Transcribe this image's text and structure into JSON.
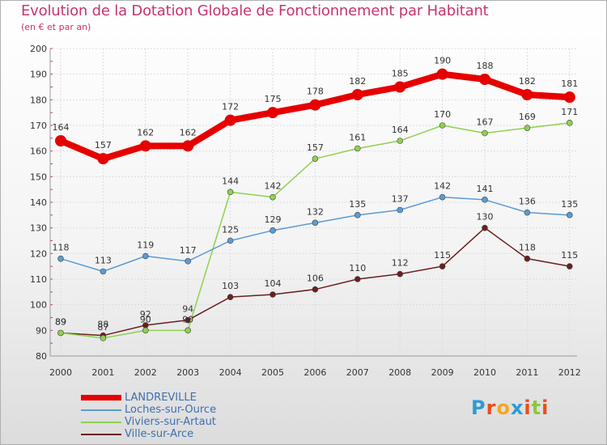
{
  "header": {
    "title": "Evolution de la Dotation Globale de Fonctionnement par Habitant",
    "subtitle": "(en € et par an)"
  },
  "logo": {
    "letters": [
      "P",
      "r",
      "o",
      "x",
      "i",
      "t",
      "i"
    ],
    "colors": [
      "#2f9ad8",
      "#e94e1b",
      "#f5a623",
      "#2f9ad8",
      "#e94e1b",
      "#8dc63f",
      "#e94e1b"
    ]
  },
  "chart_data": {
    "type": "line",
    "title": "Evolution de la Dotation Globale de Fonctionnement par Habitant",
    "subtitle": "(en € et par an)",
    "xlabel": "",
    "ylabel": "",
    "ylim": [
      80,
      200
    ],
    "yticks": [
      80,
      90,
      100,
      110,
      120,
      130,
      140,
      150,
      160,
      170,
      180,
      190,
      200
    ],
    "grid": true,
    "legend_position": "bottom-left",
    "categories": [
      "2000",
      "2001",
      "2002",
      "2003",
      "2004",
      "2005",
      "2006",
      "2007",
      "2008",
      "2009",
      "2010",
      "2011",
      "2012"
    ],
    "series": [
      {
        "name": "LANDREVILLE",
        "color": "#e60000",
        "thick": true,
        "values": [
          164,
          157,
          162,
          162,
          172,
          175,
          178,
          182,
          185,
          190,
          188,
          182,
          181
        ]
      },
      {
        "name": "Loches-sur-Ource",
        "color": "#5b9bd5",
        "thick": false,
        "values": [
          118,
          113,
          119,
          117,
          125,
          129,
          132,
          135,
          137,
          142,
          141,
          136,
          135
        ]
      },
      {
        "name": "Viviers-sur-Artaut",
        "color": "#8fd14f",
        "thick": false,
        "values": [
          89,
          87,
          90,
          90,
          144,
          142,
          157,
          161,
          164,
          170,
          167,
          169,
          171
        ]
      },
      {
        "name": "Ville-sur-Arce",
        "color": "#6b1f1f",
        "thick": false,
        "values": [
          89,
          88,
          92,
          94,
          103,
          104,
          106,
          110,
          112,
          115,
          130,
          118,
          115
        ]
      }
    ]
  }
}
